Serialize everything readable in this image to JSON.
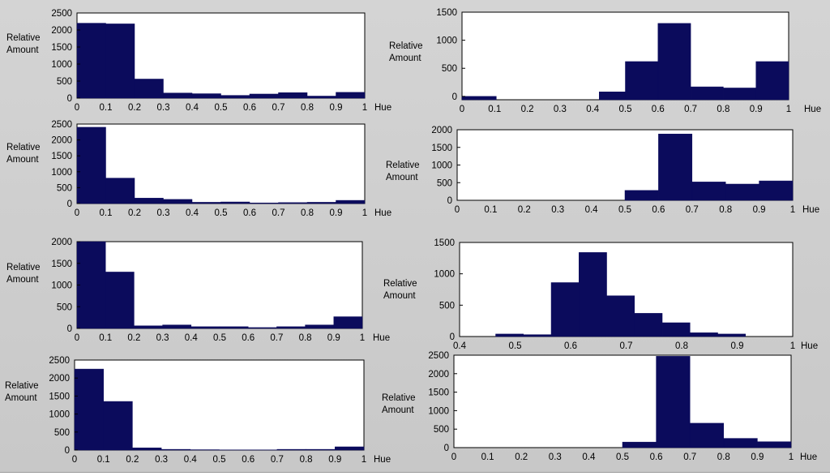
{
  "colors": {
    "bar": "#0b0b5c",
    "panel_background": "#c9c9c9",
    "plot_background": "#ffffff",
    "axis": "#000000"
  },
  "chart_data": [
    {
      "type": "bar",
      "ylabel": [
        "Relative",
        "Amount"
      ],
      "xlabel": "Hue",
      "xlim": [
        0,
        1
      ],
      "ylim": [
        0,
        2500
      ],
      "x_ticks": [
        "0",
        "0.1",
        "0.2",
        "0.3",
        "0.4",
        "0.5",
        "0.6",
        "0.7",
        "0.8",
        "0.9",
        "1"
      ],
      "y_ticks": [
        "0",
        "500",
        "1000",
        "1500",
        "2000",
        "2500"
      ],
      "bins": [
        [
          0,
          0.1
        ],
        [
          0.1,
          0.2
        ],
        [
          0.2,
          0.3
        ],
        [
          0.3,
          0.4
        ],
        [
          0.4,
          0.5
        ],
        [
          0.5,
          0.6
        ],
        [
          0.6,
          0.7
        ],
        [
          0.7,
          0.8
        ],
        [
          0.8,
          0.9
        ],
        [
          0.9,
          1.0
        ]
      ],
      "values": [
        2200,
        2180,
        560,
        150,
        130,
        80,
        120,
        160,
        60,
        170
      ],
      "grid": false
    },
    {
      "type": "bar",
      "ylabel": [
        "Relative",
        "Amount"
      ],
      "xlabel": "Hue",
      "xlim": [
        0,
        1
      ],
      "ylim": [
        0,
        2500
      ],
      "x_ticks": [
        "0",
        "0.1",
        "0.2",
        "0.3",
        "0.4",
        "0.5",
        "0.6",
        "0.7",
        "0.8",
        "0.9",
        "1"
      ],
      "y_ticks": [
        "0",
        "500",
        "1000",
        "1500",
        "2000",
        "2500"
      ],
      "bins": [
        [
          0,
          0.1
        ],
        [
          0.1,
          0.2
        ],
        [
          0.2,
          0.3
        ],
        [
          0.3,
          0.4
        ],
        [
          0.4,
          0.5
        ],
        [
          0.5,
          0.6
        ],
        [
          0.6,
          0.7
        ],
        [
          0.7,
          0.8
        ],
        [
          0.8,
          0.9
        ],
        [
          0.9,
          1.0
        ]
      ],
      "values": [
        2400,
        800,
        170,
        130,
        40,
        50,
        20,
        30,
        40,
        100
      ],
      "grid": false
    },
    {
      "type": "bar",
      "ylabel": [
        "Relative",
        "Amount"
      ],
      "xlabel": "Hue",
      "xlim": [
        0,
        1
      ],
      "ylim": [
        0,
        2000
      ],
      "x_ticks": [
        "0",
        "0.1",
        "0.2",
        "0.3",
        "0.4",
        "0.5",
        "0.6",
        "0.7",
        "0.8",
        "0.9",
        "1"
      ],
      "y_ticks": [
        "0",
        "500",
        "1000",
        "1500",
        "2000"
      ],
      "bins": [
        [
          0,
          0.1
        ],
        [
          0.1,
          0.2
        ],
        [
          0.2,
          0.3
        ],
        [
          0.3,
          0.4
        ],
        [
          0.4,
          0.5
        ],
        [
          0.5,
          0.6
        ],
        [
          0.6,
          0.7
        ],
        [
          0.7,
          0.8
        ],
        [
          0.8,
          0.9
        ],
        [
          0.9,
          1.0
        ]
      ],
      "values": [
        2000,
        1300,
        60,
        80,
        40,
        40,
        20,
        40,
        80,
        270
      ],
      "grid": false
    },
    {
      "type": "bar",
      "ylabel": [
        "Relative",
        "Amount"
      ],
      "xlabel": "Hue",
      "xlim": [
        0,
        1
      ],
      "ylim": [
        0,
        2500
      ],
      "x_ticks": [
        "0",
        "0.1",
        "0.2",
        "0.3",
        "0.4",
        "0.5",
        "0.6",
        "0.7",
        "0.8",
        "0.9",
        "1"
      ],
      "y_ticks": [
        "0",
        "500",
        "1000",
        "1500",
        "2000",
        "2500"
      ],
      "bins": [
        [
          0,
          0.1
        ],
        [
          0.1,
          0.2
        ],
        [
          0.2,
          0.3
        ],
        [
          0.3,
          0.4
        ],
        [
          0.4,
          0.5
        ],
        [
          0.5,
          0.6
        ],
        [
          0.6,
          0.7
        ],
        [
          0.7,
          0.8
        ],
        [
          0.8,
          0.9
        ],
        [
          0.9,
          1.0
        ]
      ],
      "values": [
        2250,
        1350,
        60,
        20,
        10,
        5,
        5,
        20,
        20,
        90
      ],
      "grid": false
    },
    {
      "type": "bar",
      "ylabel": [
        "Relative",
        "Amount"
      ],
      "xlabel": "Hue",
      "xlim": [
        0,
        1
      ],
      "ylim": [
        -60,
        1500
      ],
      "x_ticks": [
        "0",
        "0.1",
        "0.2",
        "0.3",
        "0.4",
        "0.5",
        "0.6",
        "0.7",
        "0.8",
        "0.9",
        "1"
      ],
      "y_ticks": [
        "0",
        "500",
        "1000",
        "1500"
      ],
      "bins": [
        [
          0,
          0.105
        ],
        [
          0.42,
          0.5
        ],
        [
          0.5,
          0.6
        ],
        [
          0.6,
          0.7
        ],
        [
          0.7,
          0.8
        ],
        [
          0.8,
          0.9
        ],
        [
          0.9,
          1.0
        ]
      ],
      "values": [
        0,
        80,
        620,
        1300,
        170,
        150,
        620
      ],
      "bar_bottom": -60,
      "grid": false
    },
    {
      "type": "bar",
      "ylabel": [
        "Relative",
        "Amount"
      ],
      "xlabel": "Hue",
      "xlim": [
        0,
        1
      ],
      "ylim": [
        0,
        2000
      ],
      "x_ticks": [
        "0",
        "0.1",
        "0.2",
        "0.3",
        "0.4",
        "0.5",
        "0.6",
        "0.7",
        "0.8",
        "0.9",
        "1"
      ],
      "y_ticks": [
        "0",
        "500",
        "1000",
        "1500",
        "2000"
      ],
      "bins": [
        [
          0.5,
          0.6
        ],
        [
          0.6,
          0.7
        ],
        [
          0.7,
          0.8
        ],
        [
          0.8,
          0.9
        ],
        [
          0.9,
          1.0
        ]
      ],
      "values": [
        280,
        1880,
        520,
        460,
        550
      ],
      "grid": false
    },
    {
      "type": "bar",
      "ylabel": [
        "Relative",
        "Amount"
      ],
      "xlabel": "Hue",
      "xlim": [
        0.4,
        1
      ],
      "ylim": [
        0,
        1500
      ],
      "x_ticks": [
        "0.4",
        "0.5",
        "0.6",
        "0.7",
        "0.8",
        "0.9",
        "1"
      ],
      "y_ticks": [
        "0",
        "500",
        "1000",
        "1500"
      ],
      "bins": [
        [
          0.465,
          0.515
        ],
        [
          0.515,
          0.565
        ],
        [
          0.565,
          0.615
        ],
        [
          0.615,
          0.665
        ],
        [
          0.665,
          0.715
        ],
        [
          0.715,
          0.765
        ],
        [
          0.765,
          0.815
        ],
        [
          0.815,
          0.865
        ],
        [
          0.865,
          0.915
        ],
        [
          0.915,
          0.965
        ]
      ],
      "values": [
        40,
        30,
        860,
        1340,
        650,
        370,
        220,
        60,
        40,
        0
      ],
      "grid": false
    },
    {
      "type": "bar",
      "ylabel": [
        "Relative",
        "Amount"
      ],
      "xlabel": "Hue",
      "xlim": [
        0,
        1
      ],
      "ylim": [
        0,
        2500
      ],
      "x_ticks": [
        "0",
        "0.1",
        "0.2",
        "0.3",
        "0.4",
        "0.5",
        "0.6",
        "0.7",
        "0.8",
        "0.9",
        "1"
      ],
      "y_ticks": [
        "0",
        "500",
        "1000",
        "1500",
        "2000",
        "2500"
      ],
      "bins": [
        [
          0.5,
          0.6
        ],
        [
          0.6,
          0.7
        ],
        [
          0.7,
          0.8
        ],
        [
          0.8,
          0.9
        ],
        [
          0.9,
          1.0
        ]
      ],
      "values": [
        150,
        2470,
        660,
        250,
        160
      ],
      "grid": false
    }
  ]
}
